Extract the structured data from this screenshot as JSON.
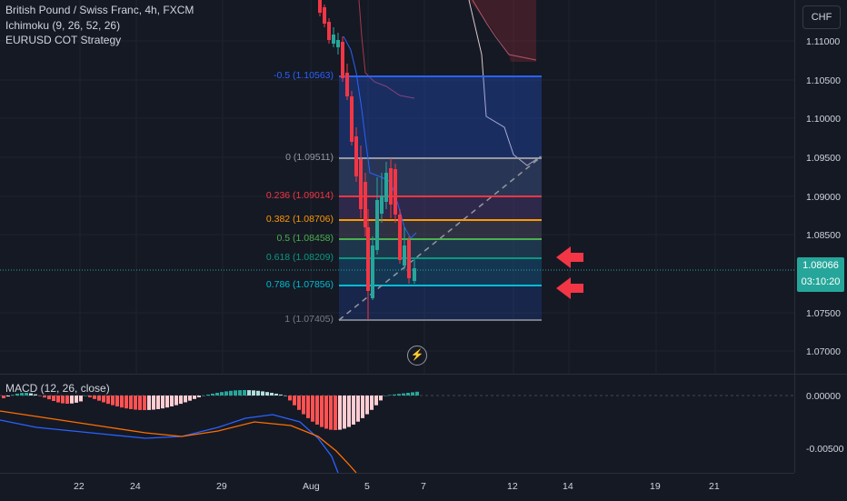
{
  "legend": {
    "symbol": "British Pound / Swiss Franc, 4h, FXCM",
    "ichimoku": "Ichimoku (9, 26, 52, 26)",
    "strategy": "EURUSD COT Strategy"
  },
  "currency": "CHF",
  "fib_levels": [
    {
      "label": "-0.5 (1.10563)",
      "price": 1.10563,
      "color": "#2962ff"
    },
    {
      "label": "0 (1.09511)",
      "price": 1.09511,
      "color": "#9598a1"
    },
    {
      "label": "0.236 (1.09014)",
      "price": 1.09014,
      "color": "#f23645"
    },
    {
      "label": "0.382 (1.08706)",
      "price": 1.08706,
      "color": "#ff9800"
    },
    {
      "label": "0.5 (1.08458)",
      "price": 1.08458,
      "color": "#4caf50"
    },
    {
      "label": "0.618 (1.08209)",
      "price": 1.08209,
      "color": "#089981"
    },
    {
      "label": "0.786 (1.07856)",
      "price": 1.07856,
      "color": "#00bcd4"
    },
    {
      "label": "1 (1.07405)",
      "price": 1.07405,
      "color": "#787b86"
    }
  ],
  "price_axis": [
    "1.11000",
    "1.10500",
    "1.10000",
    "1.09500",
    "1.09000",
    "1.08500",
    "1.07500",
    "1.07000"
  ],
  "price_axis_values": [
    1.11,
    1.105,
    1.1,
    1.095,
    1.09,
    1.085,
    1.075,
    1.07
  ],
  "current_price": "1.08066",
  "countdown": "03:10:20",
  "macd": {
    "label": "MACD (12, 26, close)",
    "axis": [
      "0.00000",
      "-0.00500"
    ]
  },
  "time_axis": [
    "22",
    "24",
    "29",
    "Aug",
    "5",
    "7",
    "12",
    "14",
    "19",
    "21"
  ],
  "colors": {
    "up": "#26a69a",
    "down": "#f23645",
    "bg": "#151924",
    "macd_line": "#2962ff",
    "signal_line": "#ff6d00"
  }
}
